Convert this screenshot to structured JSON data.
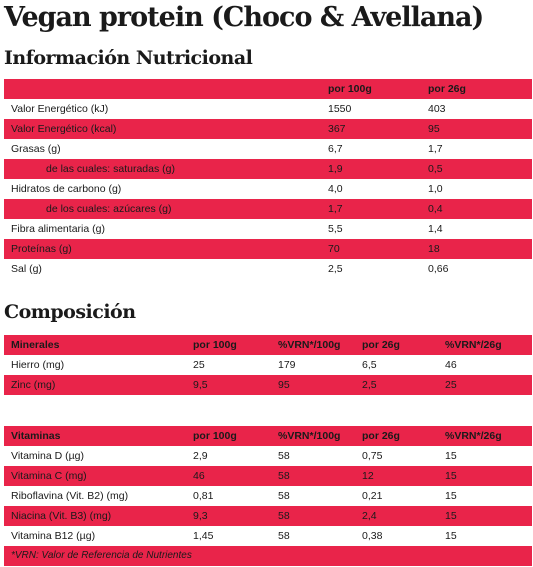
{
  "title": "Vegan protein (Choco & Avellana)",
  "nutrition": {
    "heading": "Información Nutricional",
    "columns": [
      "por 100g",
      "por 26g"
    ],
    "rows": [
      {
        "label": "Valor Energético (kJ)",
        "per100": "1550",
        "per26": "403",
        "indent": false
      },
      {
        "label": "Valor Energético (kcal)",
        "per100": "367",
        "per26": "95",
        "indent": false
      },
      {
        "label": "Grasas (g)",
        "per100": "6,7",
        "per26": "1,7",
        "indent": false
      },
      {
        "label": "de las cuales: saturadas (g)",
        "per100": "1,9",
        "per26": "0,5",
        "indent": true
      },
      {
        "label": "Hidratos de carbono (g)",
        "per100": "4,0",
        "per26": "1,0",
        "indent": false
      },
      {
        "label": "de los cuales: azúcares (g)",
        "per100": "1,7",
        "per26": "0,4",
        "indent": true
      },
      {
        "label": "Fibra alimentaria (g)",
        "per100": "5,5",
        "per26": "1,4",
        "indent": false
      },
      {
        "label": "Proteínas (g)",
        "per100": "70",
        "per26": "18",
        "indent": false
      },
      {
        "label": "Sal (g)",
        "per100": "2,5",
        "per26": "0,66",
        "indent": false
      }
    ]
  },
  "composition": {
    "heading": "Composición",
    "minerals": {
      "columns": [
        "Minerales",
        "por 100g",
        "%VRN*/100g",
        "por 26g",
        "%VRN*/26g"
      ],
      "rows": [
        [
          "Hierro (mg)",
          "25",
          "179",
          "6,5",
          "46"
        ],
        [
          "Zinc (mg)",
          "9,5",
          "95",
          "2,5",
          "25"
        ]
      ]
    },
    "vitamins": {
      "columns": [
        "Vitaminas",
        "por 100g",
        "%VRN*/100g",
        "por 26g",
        "%VRN*/26g"
      ],
      "rows": [
        [
          "Vitamina D (µg)",
          "2,9",
          "58",
          "0,75",
          "15"
        ],
        [
          "Vitamina C (mg)",
          "46",
          "58",
          "12",
          "15"
        ],
        [
          "Riboflavina (Vit. B2) (mg)",
          "0,81",
          "58",
          "0,21",
          "15"
        ],
        [
          "Niacina (Vit. B3) (mg)",
          "9,3",
          "58",
          "2,4",
          "15"
        ],
        [
          "Vitamina B12 (µg)",
          "1,45",
          "58",
          "0,38",
          "15"
        ]
      ]
    },
    "footnote": "*VRN: Valor de Referencia de Nutrientes"
  },
  "colors": {
    "accent": "#e9244a",
    "text": "#1a1a1a",
    "background": "#ffffff"
  }
}
